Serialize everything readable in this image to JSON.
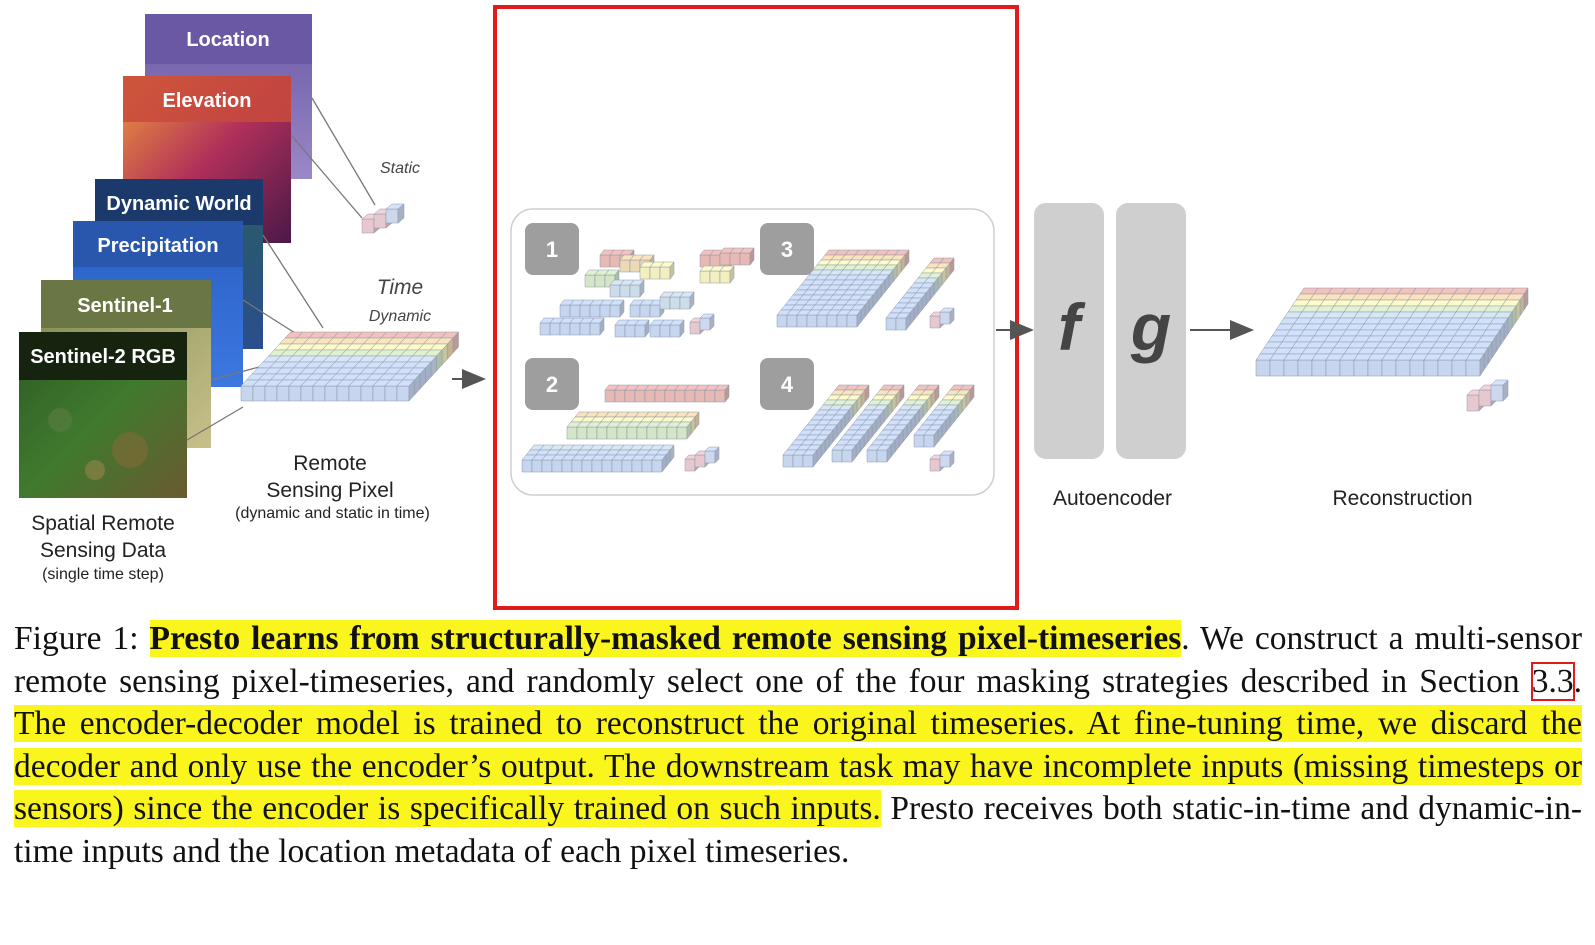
{
  "figure": {
    "layers": [
      {
        "name": "Location",
        "color": "#6c5aa0"
      },
      {
        "name": "Elevation",
        "color": "#8c2a5a"
      },
      {
        "name": "Dynamic World",
        "color": "#1b3a6b"
      },
      {
        "name": "Precipitation",
        "color": "#2f63c0"
      },
      {
        "name": "Sentinel-1",
        "color": "#6f7a47"
      },
      {
        "name": "Sentinel-2 RGB",
        "color": "#2f5a28"
      }
    ],
    "labels": {
      "static": "Static",
      "time": "Time",
      "dynamic": "Dynamic",
      "remote_pixel": "Remote",
      "remote_pixel_2": "Sensing Pixel",
      "remote_pixel_sub": "(dynamic and static in time)",
      "spatial": "Spatial Remote",
      "spatial_2": "Sensing Data",
      "spatial_sub": "(single time step)",
      "autoencoder": "Autoencoder",
      "reconstruction": "Reconstruction",
      "encoder": "f",
      "decoder": "g"
    },
    "masking_strategies": [
      "1",
      "2",
      "3",
      "4"
    ],
    "row_colors": [
      "#e7b9b5",
      "#eed9b5",
      "#f2efc0",
      "#d5e6c8",
      "#cddce9",
      "#c7d6ef"
    ],
    "highlight_color": "#e01b1b"
  },
  "caption": {
    "prefix": "Figure 1: ",
    "bold_title": "Presto learns from structurally-masked remote sensing pixel-timeseries",
    "part1": ". We construct a multi-sensor remote sensing pixel-timeseries, and randomly select one of the four masking strategies described in Section ",
    "section_ref": "3.3",
    "part2": ". ",
    "highlighted": "The encoder-decoder model is trained to reconstruct the original timeseries. At fine-tuning time, we discard the decoder and only use the encoder’s output. The downstream task may have incomplete inputs (missing timesteps or sensors) since the encoder is specifically trained on such inputs.",
    "part3": " Presto receives both static-in-time and dynamic-in-time inputs and the location metadata of each pixel timeseries."
  }
}
